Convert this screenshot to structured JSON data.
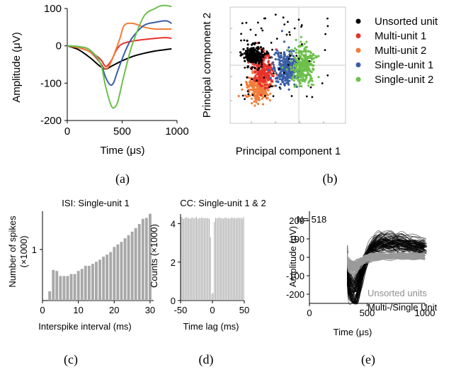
{
  "colors": {
    "unsorted": "#000000",
    "multi1": "#e8322c",
    "multi2": "#f07d3a",
    "single1": "#3a5ea8",
    "single2": "#6cc04a",
    "hist_bar": "#a8a8a8",
    "wave_gray": "#9a9a9a"
  },
  "chart_data": [
    {
      "panel": "(a)",
      "type": "line",
      "xlabel": "Time (μs)",
      "ylabel": "Amplitude (μV)",
      "xlim": [
        0,
        1000
      ],
      "ylim": [
        -200,
        100
      ],
      "xticks": [
        "0",
        "500",
        "1000"
      ],
      "yticks": [
        "100",
        "0",
        "-100",
        "-200"
      ],
      "series": [
        {
          "name": "Unsorted unit",
          "color_key": "unsorted",
          "x": [
            0,
            100,
            200,
            300,
            350,
            400,
            500,
            600,
            700,
            800,
            900,
            950
          ],
          "y": [
            0,
            -10,
            -30,
            -55,
            -62,
            -55,
            -40,
            -28,
            -20,
            -14,
            -10,
            -8
          ]
        },
        {
          "name": "Multi-unit 1",
          "color_key": "multi1",
          "x": [
            0,
            100,
            200,
            300,
            350,
            400,
            450,
            500,
            600,
            700,
            800,
            900,
            950
          ],
          "y": [
            0,
            -5,
            -15,
            -35,
            -55,
            -40,
            -10,
            5,
            13,
            17,
            20,
            22,
            20
          ]
        },
        {
          "name": "Multi-unit 2",
          "color_key": "multi2",
          "x": [
            0,
            100,
            200,
            300,
            340,
            380,
            430,
            480,
            520,
            600,
            700,
            800,
            900,
            950
          ],
          "y": [
            0,
            -5,
            -15,
            -45,
            -60,
            -55,
            -20,
            20,
            55,
            60,
            50,
            45,
            45,
            45
          ]
        },
        {
          "name": "Single-unit 1",
          "color_key": "single1",
          "x": [
            0,
            100,
            200,
            300,
            350,
            390,
            420,
            450,
            500,
            550,
            600,
            700,
            800,
            900,
            950
          ],
          "y": [
            0,
            -2,
            -10,
            -45,
            -85,
            -104,
            -100,
            -75,
            -35,
            0,
            25,
            55,
            63,
            67,
            60
          ]
        },
        {
          "name": "Single-unit 2",
          "color_key": "single2",
          "x": [
            0,
            100,
            200,
            300,
            350,
            400,
            430,
            460,
            500,
            550,
            600,
            700,
            800,
            850,
            900,
            950
          ],
          "y": [
            0,
            -2,
            -10,
            -45,
            -110,
            -160,
            -165,
            -150,
            -100,
            -40,
            10,
            80,
            100,
            107,
            108,
            105
          ]
        }
      ]
    },
    {
      "panel": "(b)",
      "type": "scatter",
      "xlabel": "Principal component 1",
      "ylabel": "Principal component 2",
      "legend": "right",
      "grid": false,
      "series": [
        {
          "name": "Unsorted unit",
          "color_key": "unsorted"
        },
        {
          "name": "Multi-unit 1",
          "color_key": "multi1"
        },
        {
          "name": "Multi-unit 2",
          "color_key": "multi2"
        },
        {
          "name": "Single-unit 1",
          "color_key": "single1"
        },
        {
          "name": "Single-unit 2",
          "color_key": "single2"
        }
      ]
    },
    {
      "panel": "(c)",
      "type": "bar",
      "title": "ISI: Single-unit 1",
      "xlabel": "Interspike interval (ms)",
      "ylabel": "Number of spikes (×1000)",
      "xlim": [
        0,
        31
      ],
      "ylim": [
        0,
        1.75
      ],
      "xticks": [
        "0",
        "10",
        "20",
        "30"
      ],
      "yticks": [
        "1"
      ],
      "x": [
        2,
        3,
        4,
        5,
        6,
        7,
        8,
        9,
        10,
        11,
        12,
        13,
        14,
        15,
        16,
        17,
        18,
        19,
        20,
        21,
        22,
        23,
        24,
        25,
        26,
        27,
        28,
        29,
        30
      ],
      "values": [
        0.18,
        0.6,
        0.58,
        0.48,
        0.48,
        0.48,
        0.52,
        0.52,
        0.58,
        0.62,
        0.68,
        0.68,
        0.72,
        0.76,
        0.8,
        0.86,
        0.9,
        0.95,
        1.05,
        1.1,
        1.15,
        1.22,
        1.28,
        1.35,
        1.42,
        1.5,
        1.6,
        1.62,
        1.7
      ]
    },
    {
      "panel": "(d)",
      "type": "bar",
      "title": "CC: Single-unit 1 & 2",
      "xlabel": "Time lag (ms)",
      "ylabel": "Counts (×1000)",
      "xlim": [
        -50,
        50
      ],
      "ylim": [
        0,
        4.5
      ],
      "xticks": [
        "-50",
        "0",
        "50"
      ],
      "yticks": [
        "0",
        "2",
        "4"
      ],
      "x": [
        -49,
        -47,
        -45,
        -43,
        -41,
        -39,
        -37,
        -35,
        -33,
        -31,
        -29,
        -27,
        -25,
        -23,
        -21,
        -19,
        -17,
        -15,
        -13,
        -11,
        -9,
        -7,
        -5,
        -3,
        -1,
        1,
        3,
        5,
        7,
        9,
        11,
        13,
        15,
        17,
        19,
        21,
        23,
        25,
        27,
        29,
        31,
        33,
        35,
        37,
        39,
        41,
        43,
        45,
        47,
        49
      ],
      "values": [
        4.35,
        4.3,
        4.25,
        4.3,
        4.35,
        4.28,
        4.3,
        4.25,
        4.3,
        4.32,
        4.28,
        4.3,
        4.35,
        4.25,
        4.3,
        4.28,
        4.33,
        4.3,
        4.27,
        4.3,
        4.28,
        4.3,
        4.25,
        3.3,
        0.35,
        0.4,
        4.1,
        4.3,
        4.28,
        4.3,
        4.33,
        4.28,
        4.3,
        4.26,
        4.3,
        4.32,
        4.28,
        4.3,
        4.25,
        4.3,
        4.33,
        4.28,
        4.3,
        4.27,
        4.3,
        4.32,
        4.28,
        4.3,
        4.26,
        4.35
      ]
    },
    {
      "panel": "(e)",
      "type": "line",
      "annotation": "N= 518",
      "xlabel": "Time (μs)",
      "ylabel": "Amplitude (μV)",
      "xlim": [
        0,
        1000
      ],
      "ylim": [
        -250,
        250
      ],
      "xticks": [
        "0",
        "500",
        "1000"
      ],
      "yticks": [
        "200",
        "100",
        "0",
        "-100",
        "-200"
      ],
      "legend_items": [
        "Unsorted units",
        "Multi-/Single Unit"
      ]
    }
  ],
  "captions": {
    "a": "(a)",
    "b": "(b)",
    "c": "(c)",
    "d": "(d)",
    "e": "(e)"
  }
}
